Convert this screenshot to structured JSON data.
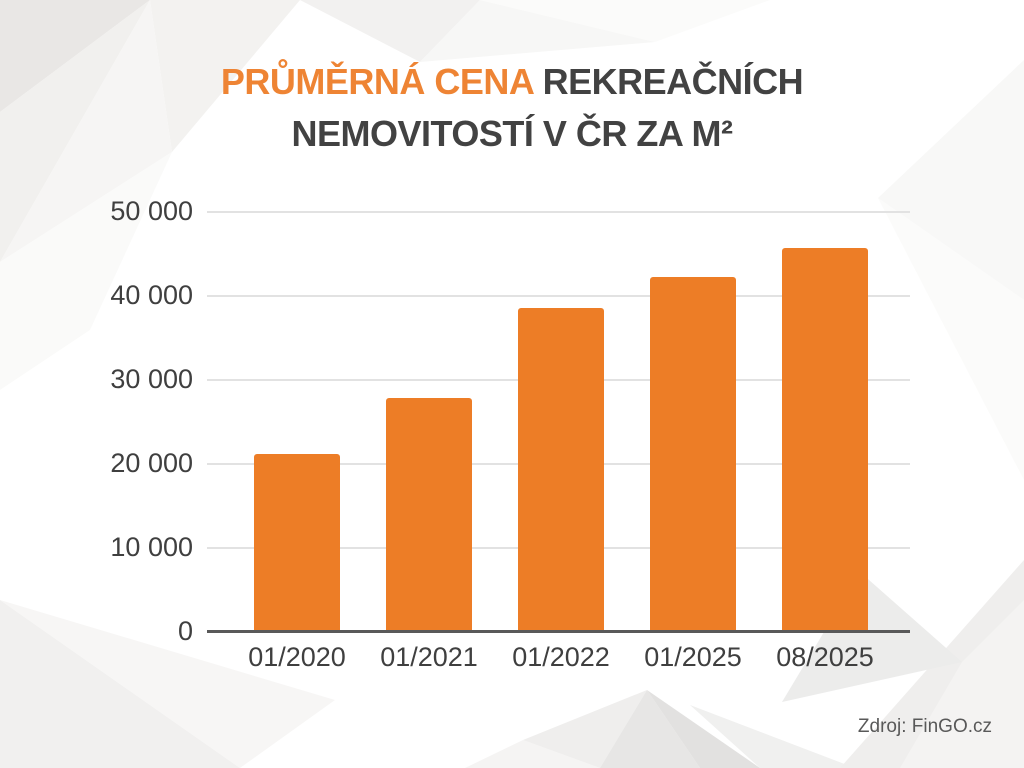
{
  "title": {
    "highlight": "PRŮMĚRNÁ CENA",
    "rest_line1": "REKREAČNÍCH",
    "line2": "NEMOVITOSTÍ V ČR ZA M²"
  },
  "source": "Zdroj: FinGO.cz",
  "colors": {
    "bar": "#ed7d26",
    "title_highlight": "#ee8434",
    "title_text": "#424242",
    "axis_line": "#595959",
    "gridline": "#e2e2e2",
    "label_text": "#3f3f3f"
  },
  "chart_data": {
    "type": "bar",
    "title": "Průměrná cena rekreačních nemovitostí v ČR za m²",
    "categories": [
      "01/2020",
      "01/2021",
      "01/2022",
      "01/2025",
      "08/2025"
    ],
    "values": [
      21200,
      27800,
      38600,
      42300,
      45700
    ],
    "xlabel": "",
    "ylabel": "",
    "ylim": [
      0,
      50000
    ],
    "yticks": [
      0,
      10000,
      20000,
      30000,
      40000,
      50000
    ],
    "ytick_labels": [
      "0",
      "10 000",
      "20 000",
      "30 000",
      "40 000",
      "50 000"
    ],
    "grid": true,
    "legend": false,
    "bar_color": "#ed7d26"
  }
}
